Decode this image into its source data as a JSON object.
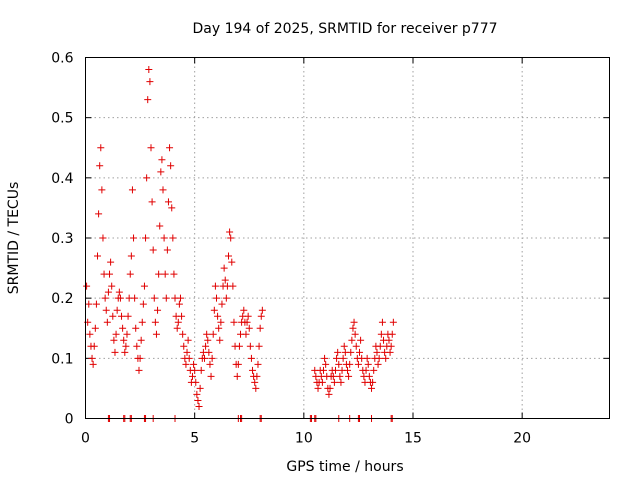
{
  "chart_data": {
    "type": "scatter",
    "title": "Day 194 of 2025, SRMTID for receiver p777",
    "xlabel": "GPS time / hours",
    "ylabel": "SRMTID / TECUs",
    "xlim": [
      0,
      24
    ],
    "ylim": [
      0,
      0.6
    ],
    "xticks": [
      "0",
      "5",
      "10",
      "15",
      "20"
    ],
    "yticks": [
      "0",
      "0.1",
      "0.2",
      "0.3",
      "0.4",
      "0.5",
      "0.6"
    ],
    "grid": true,
    "marker_color": "#e00000",
    "series": [
      {
        "values": [
          [
            0.05,
            0.22
          ],
          [
            0.1,
            0.16
          ],
          [
            0.15,
            0.19
          ],
          [
            0.2,
            0.14
          ],
          [
            0.25,
            0.12
          ],
          [
            0.3,
            0.1
          ],
          [
            0.35,
            0.09
          ],
          [
            0.4,
            0.12
          ],
          [
            0.45,
            0.15
          ],
          [
            0.5,
            0.19
          ],
          [
            0.55,
            0.27
          ],
          [
            0.6,
            0.34
          ],
          [
            0.65,
            0.42
          ],
          [
            0.7,
            0.45
          ],
          [
            0.75,
            0.38
          ],
          [
            0.8,
            0.3
          ],
          [
            0.85,
            0.24
          ],
          [
            0.9,
            0.2
          ],
          [
            0.95,
            0.18
          ],
          [
            1.0,
            0.16
          ],
          [
            1.05,
            0.21
          ],
          [
            1.1,
            0.24
          ],
          [
            1.15,
            0.26
          ],
          [
            1.2,
            0.22
          ],
          [
            1.25,
            0.17
          ],
          [
            1.3,
            0.13
          ],
          [
            1.35,
            0.11
          ],
          [
            1.4,
            0.14
          ],
          [
            1.45,
            0.18
          ],
          [
            1.5,
            0.2
          ],
          [
            1.55,
            0.21
          ],
          [
            1.6,
            0.2
          ],
          [
            1.65,
            0.17
          ],
          [
            1.7,
            0.15
          ],
          [
            1.75,
            0.13
          ],
          [
            1.8,
            0.11
          ],
          [
            1.85,
            0.12
          ],
          [
            1.9,
            0.14
          ],
          [
            1.95,
            0.17
          ],
          [
            2.0,
            0.2
          ],
          [
            2.05,
            0.24
          ],
          [
            2.1,
            0.27
          ],
          [
            2.15,
            0.38
          ],
          [
            2.2,
            0.3
          ],
          [
            2.25,
            0.2
          ],
          [
            2.3,
            0.15
          ],
          [
            2.35,
            0.12
          ],
          [
            2.4,
            0.1
          ],
          [
            2.45,
            0.08
          ],
          [
            2.5,
            0.1
          ],
          [
            2.55,
            0.13
          ],
          [
            2.6,
            0.16
          ],
          [
            2.65,
            0.19
          ],
          [
            2.7,
            0.22
          ],
          [
            2.75,
            0.3
          ],
          [
            2.8,
            0.4
          ],
          [
            2.85,
            0.53
          ],
          [
            2.9,
            0.58
          ],
          [
            2.95,
            0.56
          ],
          [
            3.0,
            0.45
          ],
          [
            3.05,
            0.36
          ],
          [
            3.1,
            0.28
          ],
          [
            3.15,
            0.2
          ],
          [
            3.2,
            0.16
          ],
          [
            3.25,
            0.14
          ],
          [
            3.3,
            0.18
          ],
          [
            3.35,
            0.24
          ],
          [
            3.4,
            0.32
          ],
          [
            3.45,
            0.41
          ],
          [
            3.5,
            0.43
          ],
          [
            3.55,
            0.38
          ],
          [
            3.6,
            0.3
          ],
          [
            3.65,
            0.24
          ],
          [
            3.7,
            0.2
          ],
          [
            3.75,
            0.28
          ],
          [
            3.8,
            0.36
          ],
          [
            3.85,
            0.45
          ],
          [
            3.9,
            0.42
          ],
          [
            3.95,
            0.35
          ],
          [
            4.0,
            0.3
          ],
          [
            4.05,
            0.24
          ],
          [
            4.1,
            0.2
          ],
          [
            4.15,
            0.17
          ],
          [
            4.2,
            0.15
          ],
          [
            4.25,
            0.16
          ],
          [
            4.3,
            0.19
          ],
          [
            4.35,
            0.2
          ],
          [
            4.4,
            0.17
          ],
          [
            4.45,
            0.14
          ],
          [
            4.5,
            0.12
          ],
          [
            4.55,
            0.1
          ],
          [
            4.6,
            0.09
          ],
          [
            4.65,
            0.11
          ],
          [
            4.7,
            0.13
          ],
          [
            4.75,
            0.1
          ],
          [
            4.8,
            0.08
          ],
          [
            4.85,
            0.06
          ],
          [
            4.9,
            0.07
          ],
          [
            4.95,
            0.09
          ],
          [
            5.0,
            0.08
          ],
          [
            5.05,
            0.06
          ],
          [
            5.1,
            0.04
          ],
          [
            5.15,
            0.03
          ],
          [
            5.2,
            0.02
          ],
          [
            5.25,
            0.05
          ],
          [
            5.3,
            0.08
          ],
          [
            5.35,
            0.1
          ],
          [
            5.4,
            0.11
          ],
          [
            5.45,
            0.1
          ],
          [
            5.5,
            0.12
          ],
          [
            5.55,
            0.14
          ],
          [
            5.6,
            0.13
          ],
          [
            5.65,
            0.11
          ],
          [
            5.7,
            0.09
          ],
          [
            5.75,
            0.07
          ],
          [
            5.8,
            0.1
          ],
          [
            5.85,
            0.14
          ],
          [
            5.9,
            0.18
          ],
          [
            5.95,
            0.22
          ],
          [
            6.0,
            0.2
          ],
          [
            6.05,
            0.17
          ],
          [
            6.1,
            0.15
          ],
          [
            6.15,
            0.13
          ],
          [
            6.2,
            0.16
          ],
          [
            6.25,
            0.19
          ],
          [
            6.3,
            0.22
          ],
          [
            6.35,
            0.25
          ],
          [
            6.4,
            0.23
          ],
          [
            6.45,
            0.2
          ],
          [
            6.5,
            0.22
          ],
          [
            6.55,
            0.27
          ],
          [
            6.6,
            0.31
          ],
          [
            6.65,
            0.3
          ],
          [
            6.7,
            0.26
          ],
          [
            6.75,
            0.22
          ],
          [
            6.8,
            0.16
          ],
          [
            6.85,
            0.12
          ],
          [
            6.9,
            0.09
          ],
          [
            6.95,
            0.07
          ],
          [
            7.0,
            0.09
          ],
          [
            7.05,
            0.12
          ],
          [
            7.1,
            0.14
          ],
          [
            7.15,
            0.16
          ],
          [
            7.2,
            0.17
          ],
          [
            7.25,
            0.18
          ],
          [
            7.3,
            0.16
          ],
          [
            7.35,
            0.14
          ],
          [
            7.4,
            0.16
          ],
          [
            7.45,
            0.17
          ],
          [
            7.5,
            0.15
          ],
          [
            7.55,
            0.12
          ],
          [
            7.6,
            0.1
          ],
          [
            7.65,
            0.08
          ],
          [
            7.7,
            0.07
          ],
          [
            7.75,
            0.06
          ],
          [
            7.8,
            0.05
          ],
          [
            7.85,
            0.07
          ],
          [
            7.9,
            0.09
          ],
          [
            7.95,
            0.12
          ],
          [
            8.0,
            0.15
          ],
          [
            8.05,
            0.17
          ],
          [
            8.1,
            0.18
          ],
          [
            10.5,
            0.08
          ],
          [
            10.55,
            0.07
          ],
          [
            10.6,
            0.06
          ],
          [
            10.65,
            0.05
          ],
          [
            10.7,
            0.06
          ],
          [
            10.75,
            0.08
          ],
          [
            10.8,
            0.07
          ],
          [
            10.85,
            0.06
          ],
          [
            10.9,
            0.08
          ],
          [
            10.95,
            0.1
          ],
          [
            11.0,
            0.09
          ],
          [
            11.05,
            0.07
          ],
          [
            11.1,
            0.05
          ],
          [
            11.15,
            0.04
          ],
          [
            11.2,
            0.05
          ],
          [
            11.25,
            0.07
          ],
          [
            11.3,
            0.08
          ],
          [
            11.35,
            0.07
          ],
          [
            11.4,
            0.06
          ],
          [
            11.45,
            0.08
          ],
          [
            11.5,
            0.1
          ],
          [
            11.55,
            0.11
          ],
          [
            11.6,
            0.09
          ],
          [
            11.65,
            0.07
          ],
          [
            11.7,
            0.06
          ],
          [
            11.75,
            0.08
          ],
          [
            11.8,
            0.1
          ],
          [
            11.85,
            0.12
          ],
          [
            11.9,
            0.11
          ],
          [
            11.95,
            0.09
          ],
          [
            12.0,
            0.08
          ],
          [
            12.05,
            0.07
          ],
          [
            12.1,
            0.09
          ],
          [
            12.15,
            0.11
          ],
          [
            12.2,
            0.13
          ],
          [
            12.25,
            0.15
          ],
          [
            12.3,
            0.16
          ],
          [
            12.35,
            0.14
          ],
          [
            12.4,
            0.12
          ],
          [
            12.45,
            0.1
          ],
          [
            12.5,
            0.09
          ],
          [
            12.55,
            0.11
          ],
          [
            12.6,
            0.13
          ],
          [
            12.65,
            0.1
          ],
          [
            12.7,
            0.08
          ],
          [
            12.75,
            0.07
          ],
          [
            12.8,
            0.06
          ],
          [
            12.85,
            0.08
          ],
          [
            12.9,
            0.1
          ],
          [
            12.95,
            0.09
          ],
          [
            13.0,
            0.07
          ],
          [
            13.05,
            0.06
          ],
          [
            13.1,
            0.05
          ],
          [
            13.15,
            0.06
          ],
          [
            13.2,
            0.08
          ],
          [
            13.25,
            0.1
          ],
          [
            13.3,
            0.12
          ],
          [
            13.35,
            0.11
          ],
          [
            13.4,
            0.09
          ],
          [
            13.45,
            0.1
          ],
          [
            13.5,
            0.12
          ],
          [
            13.55,
            0.14
          ],
          [
            13.6,
            0.16
          ],
          [
            13.65,
            0.13
          ],
          [
            13.7,
            0.11
          ],
          [
            13.75,
            0.1
          ],
          [
            13.8,
            0.12
          ],
          [
            13.85,
            0.14
          ],
          [
            13.9,
            0.13
          ],
          [
            13.95,
            0.11
          ],
          [
            14.0,
            0.12
          ],
          [
            14.05,
            0.14
          ],
          [
            14.1,
            0.16
          ]
        ]
      },
      {
        "values": [
          [
            1.05,
            0
          ],
          [
            1.1,
            0
          ],
          [
            1.75,
            0
          ],
          [
            1.8,
            0
          ],
          [
            2.05,
            0
          ],
          [
            2.1,
            0
          ],
          [
            2.7,
            0
          ],
          [
            2.75,
            0
          ],
          [
            3.1,
            0
          ],
          [
            4.1,
            0
          ],
          [
            7.0,
            0
          ],
          [
            7.1,
            0
          ],
          [
            7.15,
            0
          ],
          [
            8.0,
            0
          ],
          [
            8.05,
            0
          ],
          [
            10.3,
            0
          ],
          [
            10.35,
            0
          ],
          [
            10.5,
            0
          ],
          [
            10.55,
            0
          ],
          [
            11.6,
            0
          ],
          [
            12.1,
            0
          ],
          [
            12.5,
            0
          ],
          [
            12.55,
            0
          ],
          [
            13.1,
            0
          ],
          [
            14.0,
            0
          ],
          [
            14.05,
            0
          ]
        ]
      }
    ]
  }
}
